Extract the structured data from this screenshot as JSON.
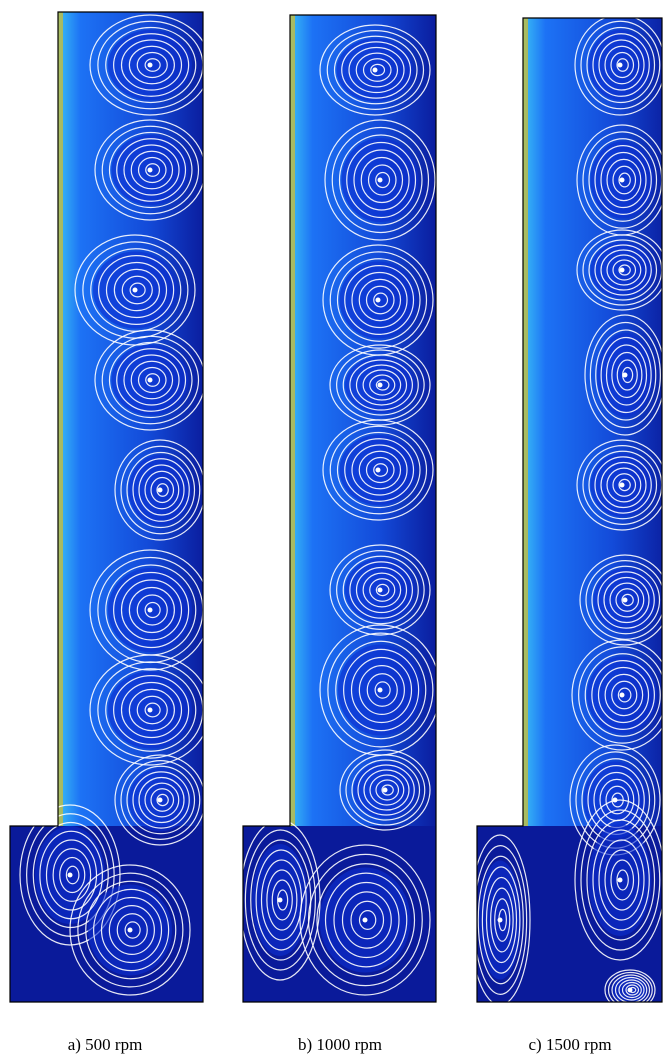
{
  "panels": [
    {
      "caption": "a) 500 rpm"
    },
    {
      "caption": "b) 1000 rpm"
    },
    {
      "caption": "c) 1500 rpm"
    }
  ]
}
